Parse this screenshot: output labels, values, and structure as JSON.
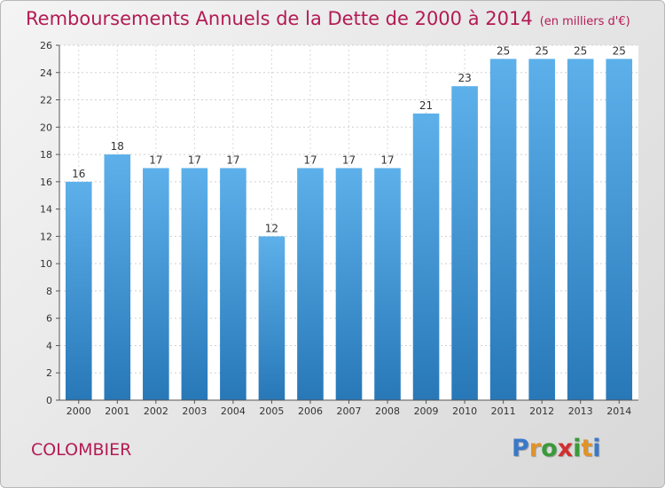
{
  "chart_data": {
    "type": "bar",
    "title": "Remboursements Annuels de la Dette de 2000 à 2014",
    "subtitle": "(en milliers d'€)",
    "categories": [
      "2000",
      "2001",
      "2002",
      "2003",
      "2004",
      "2005",
      "2006",
      "2007",
      "2008",
      "2009",
      "2010",
      "2011",
      "2012",
      "2013",
      "2014"
    ],
    "values": [
      16,
      18,
      17,
      17,
      17,
      12,
      17,
      17,
      17,
      21,
      23,
      25,
      25,
      25,
      25
    ],
    "ylim": [
      0,
      26
    ],
    "yticks": [
      0,
      2,
      4,
      6,
      8,
      10,
      12,
      14,
      16,
      18,
      20,
      22,
      24,
      26
    ],
    "grid": true,
    "colors": {
      "bar_top": "#5db0ea",
      "bar_bottom": "#2878b8",
      "title": "#b31b54"
    }
  },
  "footer": {
    "place": "COLOMBIER",
    "logo_letters": [
      {
        "ch": "P",
        "color": "#3a78c8"
      },
      {
        "ch": "r",
        "color": "#e0932a"
      },
      {
        "ch": "o",
        "color": "#3a9a3a"
      },
      {
        "ch": "x",
        "color": "#d12f2f"
      },
      {
        "ch": "i",
        "color": "#3a9a3a"
      },
      {
        "ch": "t",
        "color": "#e0932a"
      },
      {
        "ch": "i",
        "color": "#3a78c8"
      }
    ]
  }
}
